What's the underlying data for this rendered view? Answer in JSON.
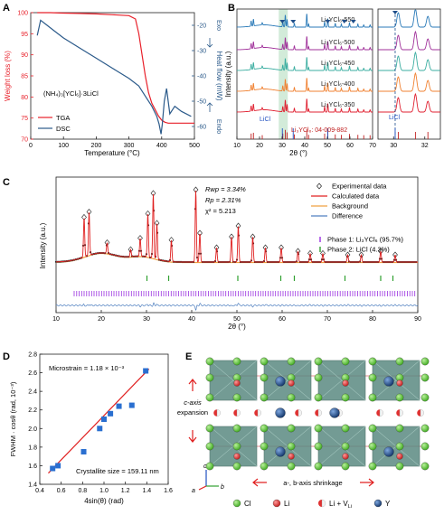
{
  "panels": {
    "A": {
      "letter": "A",
      "type": "line",
      "xlabel": "Temperature (°C)",
      "ylabel_left": "Weight loss (%)",
      "ylabel_right": "Heat flow (mW)",
      "exo": "Exo",
      "endo": "Endo",
      "sample": "(NH₄)₃[YCl₆]·3LiCl",
      "xlim": [
        0,
        500
      ],
      "xticks": [
        0,
        100,
        200,
        300,
        400,
        500
      ],
      "ylim_left": [
        70,
        100
      ],
      "yticks_left": [
        70,
        75,
        80,
        85,
        90,
        95,
        100
      ],
      "ylim_right": [
        -65,
        -15
      ],
      "yticks_right": [
        -20,
        -30,
        -40,
        -50,
        -60
      ],
      "series": [
        {
          "name": "TGA",
          "color": "#e8202a",
          "axis": "left",
          "x": [
            20,
            60,
            100,
            150,
            200,
            250,
            300,
            320,
            330,
            340,
            350,
            360,
            370,
            380,
            390,
            400,
            410,
            420,
            500
          ],
          "y": [
            100,
            100,
            99.9,
            99.8,
            99.7,
            99.5,
            99.3,
            98.5,
            95,
            90,
            85,
            81,
            78.5,
            77,
            75.5,
            74.5,
            74,
            73.8,
            73.8
          ]
        },
        {
          "name": "DSC",
          "color": "#2b5a8a",
          "axis": "right",
          "x": [
            20,
            30,
            50,
            70,
            100,
            150,
            200,
            250,
            300,
            330,
            350,
            370,
            385,
            392,
            398,
            402,
            408,
            415,
            425,
            440,
            460,
            490
          ],
          "y": [
            -24,
            -18,
            -20,
            -22,
            -25,
            -29,
            -33,
            -37,
            -41,
            -44,
            -48,
            -52,
            -56,
            -59,
            -63,
            -59,
            -50,
            -45,
            -55,
            -52,
            -54,
            -56
          ]
        }
      ]
    },
    "B": {
      "letter": "B",
      "type": "xrd-stack",
      "xlabel": "2θ (°)",
      "ylabel": "Intensity (a.u.)",
      "xlim_main": [
        10,
        70
      ],
      "xticks_main": [
        10,
        20,
        30,
        40,
        50,
        60,
        70
      ],
      "xlim_zoom": [
        29,
        33
      ],
      "xticks_zoom": [
        30,
        32
      ],
      "highlight_band": [
        28.5,
        32.5
      ],
      "licl_label": "LiCl",
      "ref_label": "Li₃YCl₆: 04-009-882",
      "curves": [
        {
          "name": "Li₃YCl₆-550",
          "color": "#2a7ab8"
        },
        {
          "name": "Li₃YCl₆-500",
          "color": "#a0309a"
        },
        {
          "name": "Li₃YCl₆-450",
          "color": "#3aada0"
        },
        {
          "name": "Li₃YCl₆-400",
          "color": "#f08030"
        },
        {
          "name": "Li₃YCl₆-350",
          "color": "#e02030"
        }
      ],
      "peaks_2theta": [
        16.3,
        17.3,
        21.2,
        30.3,
        31.4,
        32.2,
        35.4,
        40.9,
        41.7,
        48.8,
        50.2,
        53.5,
        56.2,
        59.8,
        63.5,
        66.1,
        68.9
      ],
      "peak_heights": [
        0.35,
        0.45,
        0.15,
        0.35,
        0.8,
        0.5,
        0.25,
        0.9,
        0.2,
        0.35,
        0.55,
        0.25,
        0.2,
        0.3,
        0.2,
        0.15,
        0.15
      ],
      "licl_peaks": [
        30.1,
        34.9,
        50.2
      ],
      "triangle_markers_2theta": [
        30.1,
        34.9,
        50.2,
        57.5,
        61.5
      ]
    },
    "C": {
      "letter": "C",
      "type": "rietveld",
      "xlabel": "2θ (°)",
      "ylabel": "Intensity (a.u.)",
      "xlim": [
        10,
        90
      ],
      "xticks": [
        10,
        20,
        30,
        40,
        50,
        60,
        70,
        80,
        90
      ],
      "stats": [
        "Rwp = 3.34%",
        "Rp = 2.31%",
        "χ² = 5.213"
      ],
      "legend": [
        {
          "label": "Experimental data",
          "kind": "marker",
          "color": "#222222"
        },
        {
          "label": "Calculated data",
          "kind": "line",
          "color": "#e02020"
        },
        {
          "label": "Background",
          "kind": "line",
          "color": "#f0a040"
        },
        {
          "label": "Difference",
          "kind": "line",
          "color": "#5080c0"
        }
      ],
      "phase_legend": [
        {
          "label": "Phase 1: Li₃YCl₆ (95.7%)",
          "color": "#9a30e0"
        },
        {
          "label": "Phase 2: LiCl (4.3%)",
          "color": "#30a030"
        }
      ],
      "peaks_2theta": [
        16.2,
        17.3,
        21.3,
        26.5,
        28.6,
        30.3,
        31.5,
        32.3,
        35.5,
        40.9,
        41.8,
        45.5,
        48.8,
        50.3,
        53.5,
        56.3,
        59.8,
        63.5,
        66.2,
        69.0,
        74.5,
        77.5,
        81.8,
        85.0
      ],
      "peak_heights": [
        0.55,
        0.6,
        0.15,
        0.1,
        0.25,
        0.6,
        0.9,
        0.5,
        0.3,
        1.0,
        0.4,
        0.2,
        0.35,
        0.5,
        0.35,
        0.2,
        0.2,
        0.15,
        0.12,
        0.12,
        0.1,
        0.1,
        0.15,
        0.1
      ],
      "licl_ticks": [
        30.1,
        34.9,
        50.2,
        59.7,
        62.7,
        73.9,
        81.8,
        84.5
      ]
    },
    "D": {
      "letter": "D",
      "type": "scatter",
      "xlabel": "4sin(θ) (rad)",
      "ylabel": "FWHM · cosθ (rad, 10⁻³)",
      "xlim": [
        0.4,
        1.6
      ],
      "xticks": [
        0.4,
        0.6,
        0.8,
        1.0,
        1.2,
        1.4,
        1.6
      ],
      "ylim": [
        1.4,
        2.8
      ],
      "yticks": [
        1.4,
        1.6,
        1.8,
        2.0,
        2.2,
        2.4,
        2.6,
        2.8
      ],
      "microstrain": "Microstrain = 1.18 × 10⁻³",
      "crystallite": "Crystallite size = 159.11 nm",
      "points": {
        "x": [
          0.52,
          0.57,
          0.81,
          0.96,
          1.0,
          1.06,
          1.14,
          1.26,
          1.39
        ],
        "y": [
          1.57,
          1.6,
          1.75,
          2.0,
          2.1,
          2.16,
          2.24,
          2.25,
          2.62
        ]
      },
      "fit": {
        "x": [
          0.48,
          1.42
        ],
        "y": [
          1.52,
          2.64
        ]
      },
      "marker_color": "#2a6fd0",
      "line_color": "#e02020"
    },
    "E": {
      "letter": "E",
      "type": "diagram",
      "c_axis_label": [
        "c-axis",
        "expansion"
      ],
      "ab_label": "a-, b-axis shrinkage",
      "axis_labels": {
        "c": "c",
        "a": "a",
        "b": "b"
      },
      "legend": [
        {
          "label": "Cl",
          "color": "#5ec83a"
        },
        {
          "label": "Li",
          "color": "#e03030"
        },
        {
          "label": "Li + V",
          "sub": "Li",
          "color": "half"
        },
        {
          "label": "Y",
          "color": "#1f4e8a"
        }
      ]
    }
  }
}
